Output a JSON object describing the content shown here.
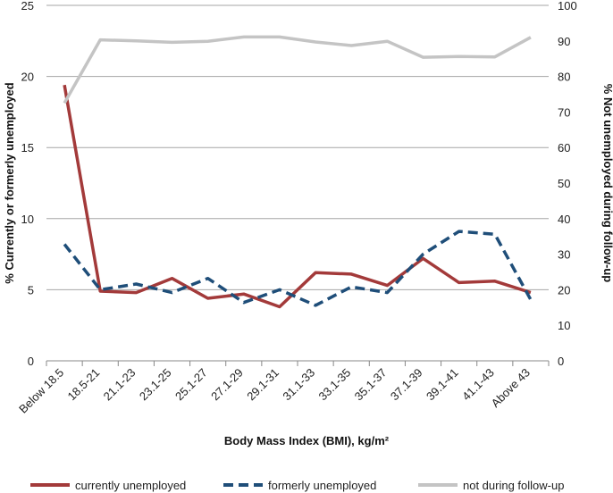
{
  "chart_data": {
    "type": "line",
    "categories": [
      "Below 18.5",
      "18.5-21",
      "21.1-23",
      "23.1-25",
      "25.1-27",
      "27.1-29",
      "29.1-31",
      "31.1-33",
      "33.1-35",
      "35.1-37",
      "37.1-39",
      "39.1-41",
      "41.1-43",
      "Above 43"
    ],
    "xlabel": "Body Mass Index (BMI), kg/m²",
    "ylabel": "% Currently or formerly unemployed",
    "y2label": "% Not unemployed during follow-up",
    "ylim": [
      0,
      25
    ],
    "yticks": [
      0,
      5,
      10,
      15,
      20,
      25
    ],
    "y2lim": [
      0,
      100
    ],
    "y2ticks": [
      0,
      10,
      20,
      30,
      40,
      50,
      60,
      70,
      80,
      90,
      100
    ],
    "grid": true,
    "legend_position": "bottom",
    "series": [
      {
        "name": "currently unemployed",
        "axis": "left",
        "color": "#a33a3a",
        "style": "solid",
        "values": [
          19.4,
          4.9,
          4.8,
          5.8,
          4.4,
          4.7,
          3.8,
          6.2,
          6.1,
          5.3,
          7.2,
          5.5,
          5.6,
          4.8
        ]
      },
      {
        "name": "formerly unemployed",
        "axis": "left",
        "color": "#1f4e79",
        "style": "dashed",
        "values": [
          8.2,
          5.0,
          5.4,
          4.8,
          5.8,
          4.1,
          5.0,
          3.9,
          5.2,
          4.8,
          7.5,
          9.1,
          8.9,
          4.3
        ]
      },
      {
        "name": "not during follow-up",
        "axis": "right",
        "color": "#c4c4c4",
        "style": "solid",
        "values": [
          72.5,
          90.3,
          90.0,
          89.6,
          89.9,
          91.1,
          91.1,
          89.7,
          88.7,
          89.9,
          85.4,
          85.6,
          85.5,
          91.0
        ]
      }
    ]
  }
}
